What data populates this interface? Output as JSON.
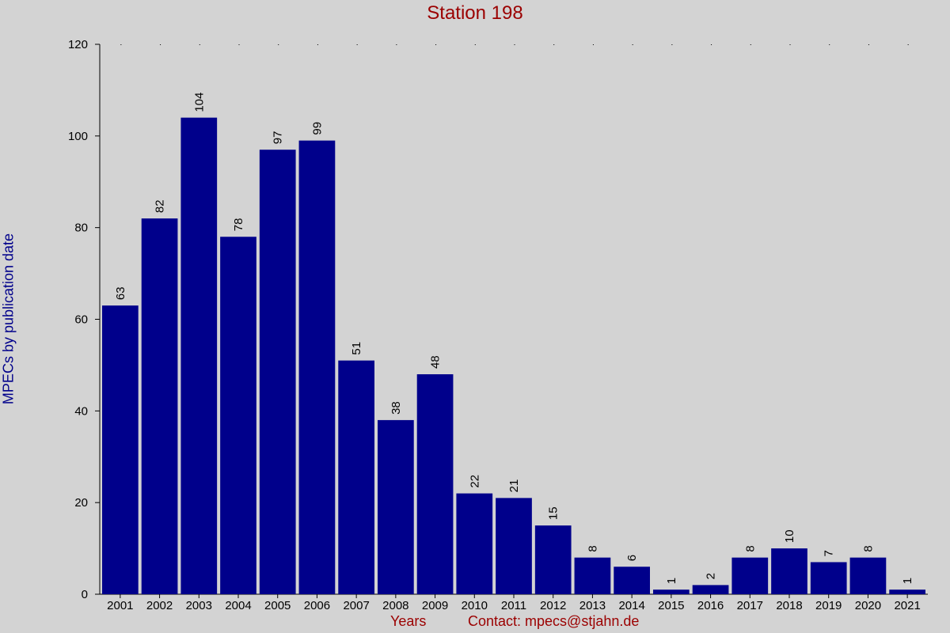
{
  "chart_data": {
    "type": "bar",
    "title": "Station 198",
    "xlabel": "Years",
    "ylabel": "MPECs by publication date",
    "contact": "Contact: mpecs@stjahn.de",
    "categories": [
      "2001",
      "2002",
      "2003",
      "2004",
      "2005",
      "2006",
      "2007",
      "2008",
      "2009",
      "2010",
      "2011",
      "2012",
      "2013",
      "2014",
      "2015",
      "2016",
      "2017",
      "2018",
      "2019",
      "2020",
      "2021"
    ],
    "values": [
      63,
      82,
      104,
      78,
      97,
      99,
      51,
      38,
      48,
      22,
      21,
      15,
      8,
      6,
      1,
      2,
      8,
      10,
      7,
      8,
      1
    ],
    "ylim": [
      0,
      120
    ],
    "yticks": [
      0,
      20,
      40,
      60,
      80,
      100,
      120
    ],
    "bar_color": "#00008b",
    "background": "#d3d3d3",
    "title_color": "#9b0000",
    "ylabel_color": "#00008b",
    "grid": "dotted markers at top"
  }
}
